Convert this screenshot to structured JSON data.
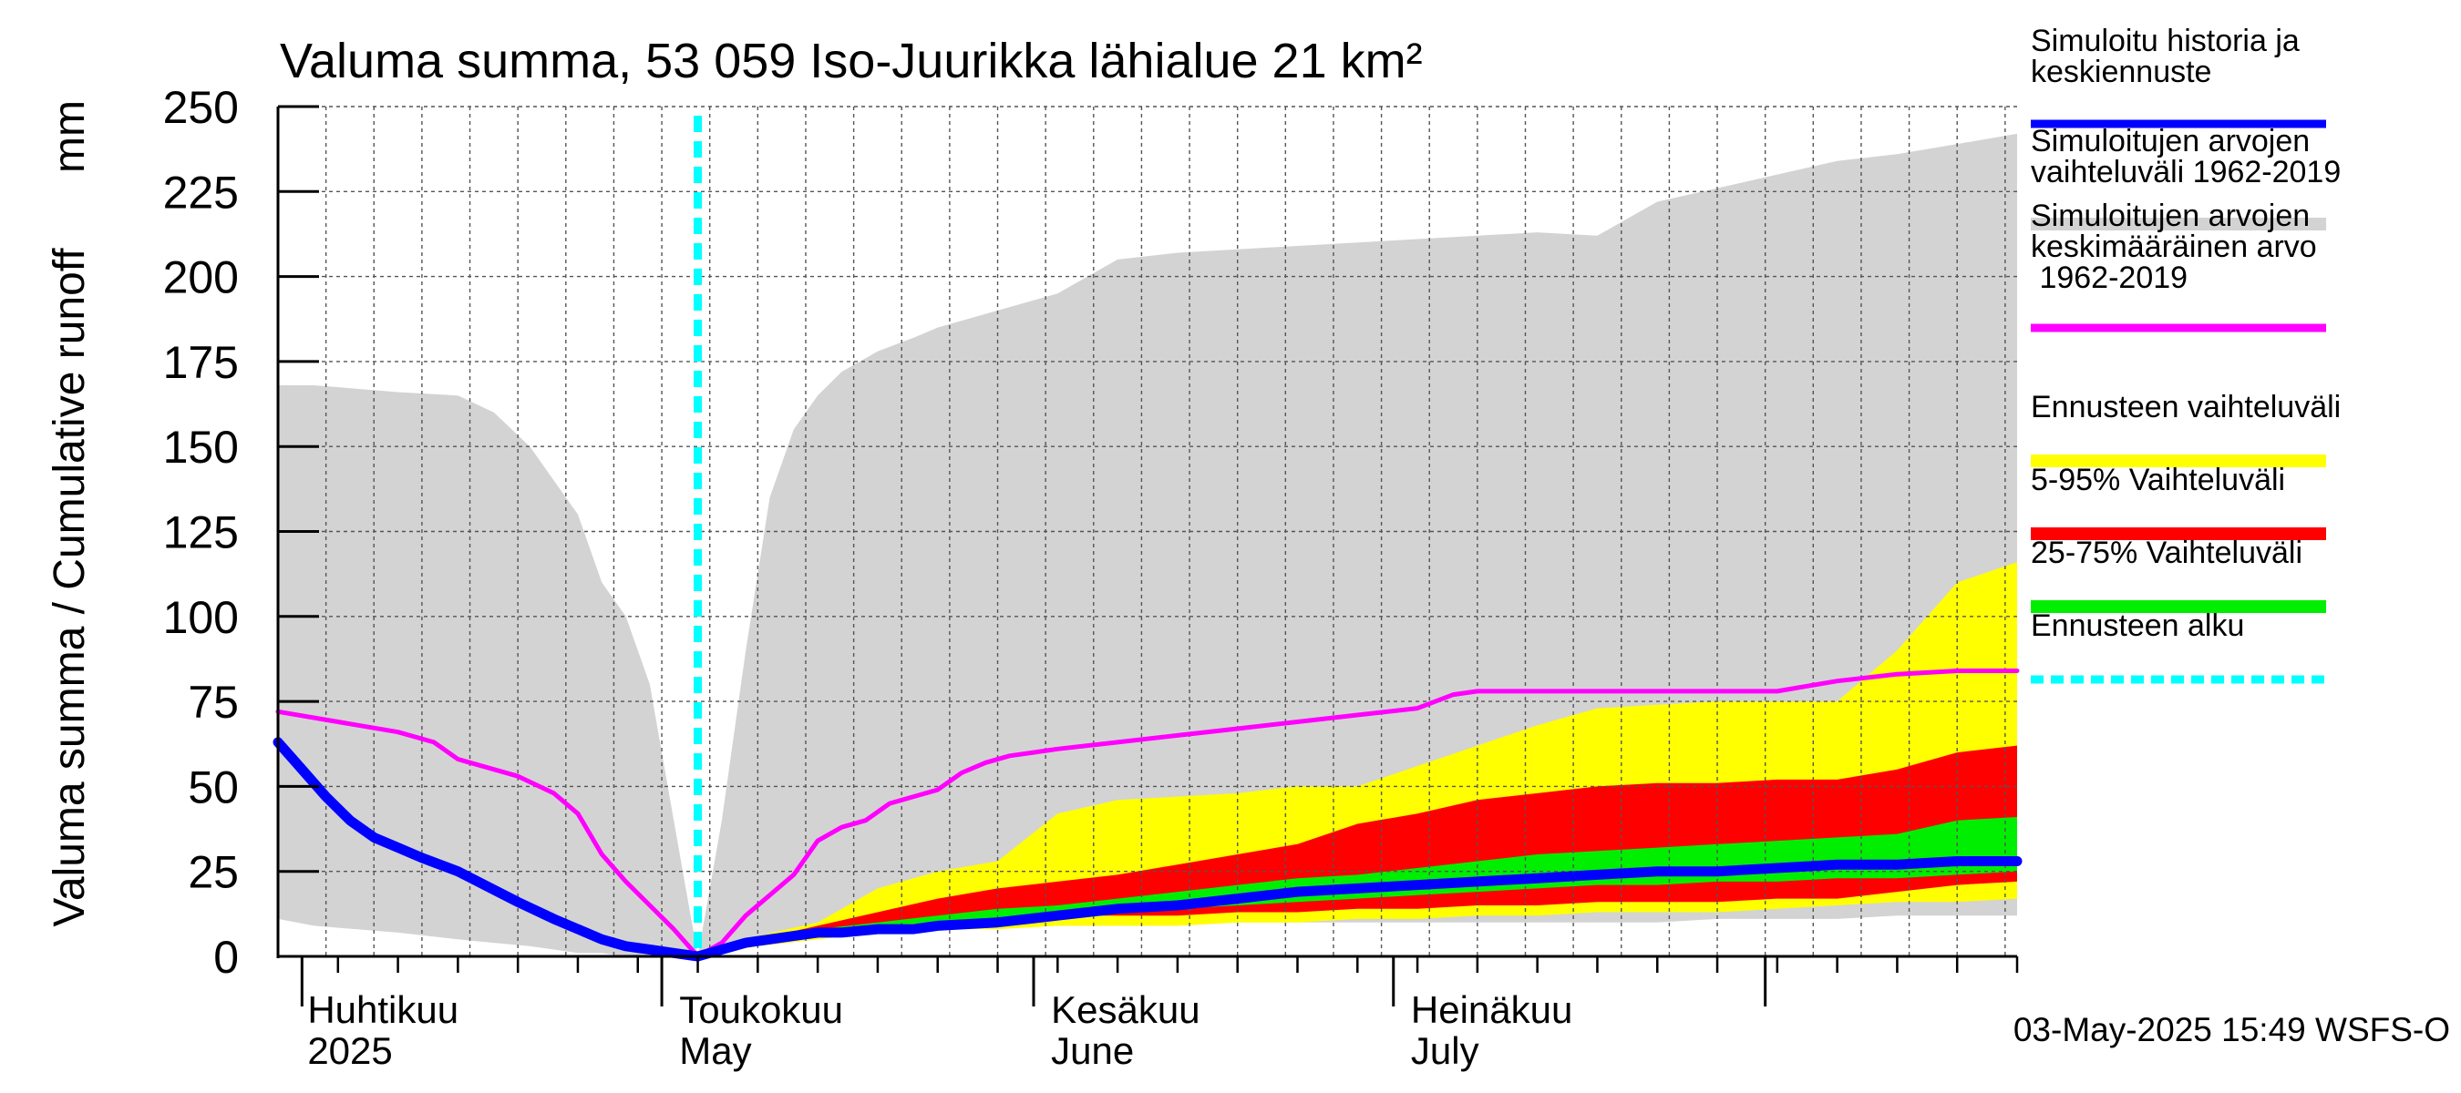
{
  "chart_data": {
    "type": "area",
    "title": "Valuma summa, 53 059 Iso-Juurikka lähialue 21 km²",
    "ylabel": "Valuma summa / Cumulative runoff",
    "yunit": "mm",
    "ylim": [
      0,
      250
    ],
    "yticks": [
      "0",
      "25",
      "50",
      "75",
      "100",
      "125",
      "150",
      "175",
      "200",
      "225",
      "250"
    ],
    "xlim_days": [
      -35,
      110
    ],
    "x_start_date": "2025-03-29",
    "x_end_date": "2025-08-21",
    "month_labels": [
      {
        "fi": "Huhtikuu",
        "en": "2025",
        "day": -33
      },
      {
        "fi": "Toukokuu",
        "en": "May",
        "day": -2
      },
      {
        "fi": "Kesäkuu",
        "en": "June",
        "day": 29
      },
      {
        "fi": "Heinäkuu",
        "en": "July",
        "day": 59
      }
    ],
    "month_boundaries": [
      -33,
      -3,
      28,
      58,
      89
    ],
    "forecast_start_day": 0,
    "grid": true,
    "timestamp": "03-May-2025 15:49 WSFS-O",
    "legend": [
      {
        "label": "Simuloitu historia ja keskiennuste",
        "color": "#0000ff",
        "style": "line"
      },
      {
        "label": "Simuloitujen arvojen vaihteluväli 1962-2019",
        "color": "#d3d3d3",
        "style": "band"
      },
      {
        "label": "Simuloitujen arvojen keskimääräinen arvo 1962-2019",
        "color": "#ff00ff",
        "style": "line"
      },
      {
        "label": "Ennusteen vaihteluväli",
        "color": "#ffff00",
        "style": "band"
      },
      {
        "label": "5-95% Vaihteluväli",
        "color": "#ff0000",
        "style": "band"
      },
      {
        "label": "25-75% Vaihteluväli",
        "color": "#00ee00",
        "style": "band"
      },
      {
        "label": "Ennusteen alku",
        "color": "#00ffff",
        "style": "dashed"
      }
    ],
    "series": [
      {
        "name": "Simuloitujen arvojen vaihteluväli 1962-2019",
        "kind": "band",
        "color": "#d3d3d3",
        "x": [
          -35,
          -32,
          -25,
          -20,
          -17,
          -14,
          -12,
          -10,
          -8,
          -6,
          -4,
          -2,
          0,
          2,
          4,
          6,
          8,
          10,
          12,
          15,
          18,
          20,
          25,
          30,
          35,
          40,
          45,
          50,
          55,
          60,
          65,
          70,
          75,
          80,
          85,
          90,
          95,
          100,
          105,
          110
        ],
        "upper": [
          168,
          168,
          166,
          165,
          160,
          150,
          140,
          130,
          110,
          100,
          80,
          40,
          0,
          40,
          90,
          135,
          155,
          165,
          172,
          178,
          182,
          185,
          190,
          195,
          205,
          207,
          208,
          209,
          210,
          211,
          212,
          213,
          212,
          222,
          226,
          230,
          234,
          236,
          239,
          242
        ],
        "lower": [
          11,
          9,
          7,
          5,
          4,
          3,
          2,
          1,
          1,
          0,
          0,
          0,
          0,
          2,
          4,
          5,
          6,
          6,
          7,
          7,
          8,
          8,
          9,
          9,
          9,
          9,
          10,
          10,
          10,
          10,
          10,
          10,
          10,
          10,
          11,
          11,
          11,
          12,
          12,
          12
        ]
      },
      {
        "name": "Ennusteen vaihteluväli",
        "kind": "band",
        "color": "#ffff00",
        "x": [
          0,
          5,
          10,
          15,
          20,
          25,
          30,
          35,
          40,
          45,
          50,
          55,
          60,
          65,
          70,
          75,
          80,
          85,
          90,
          95,
          100,
          105,
          110
        ],
        "upper": [
          0,
          6,
          10,
          20,
          25,
          28,
          42,
          46,
          47,
          48,
          50,
          50,
          56,
          62,
          68,
          73,
          74,
          75,
          75,
          75,
          90,
          110,
          116
        ],
        "lower": [
          0,
          3,
          5,
          7,
          8,
          8,
          9,
          9,
          9,
          10,
          10,
          11,
          11,
          12,
          12,
          13,
          13,
          13,
          14,
          15,
          16,
          16,
          17
        ]
      },
      {
        "name": "5-95% Vaihteluväli",
        "kind": "band",
        "color": "#ff0000",
        "x": [
          0,
          5,
          10,
          15,
          20,
          25,
          30,
          35,
          40,
          45,
          50,
          55,
          60,
          65,
          70,
          75,
          80,
          85,
          90,
          95,
          100,
          105,
          110
        ],
        "upper": [
          0,
          5,
          9,
          13,
          17,
          20,
          22,
          24,
          27,
          30,
          33,
          39,
          42,
          46,
          48,
          50,
          51,
          51,
          52,
          52,
          55,
          60,
          62
        ],
        "lower": [
          0,
          4,
          7,
          9,
          10,
          11,
          12,
          12,
          12,
          13,
          13,
          14,
          14,
          15,
          15,
          16,
          16,
          16,
          17,
          17,
          19,
          21,
          22
        ]
      },
      {
        "name": "25-75% Vaihteluväli",
        "kind": "band",
        "color": "#00ee00",
        "x": [
          0,
          5,
          10,
          15,
          20,
          25,
          30,
          35,
          40,
          45,
          50,
          55,
          60,
          65,
          70,
          75,
          80,
          85,
          90,
          95,
          100,
          105,
          110
        ],
        "upper": [
          0,
          5,
          8,
          10,
          12,
          14,
          15,
          17,
          19,
          21,
          23,
          24,
          26,
          28,
          30,
          31,
          32,
          33,
          34,
          35,
          36,
          40,
          41
        ],
        "lower": [
          0,
          4,
          7,
          9,
          10,
          11,
          12,
          13,
          14,
          15,
          16,
          17,
          18,
          19,
          20,
          21,
          21,
          22,
          22,
          23,
          23,
          24,
          25
        ]
      },
      {
        "name": "Simuloitujen arvojen keskimääräinen arvo 1962-2019",
        "kind": "line",
        "color": "#ff00ff",
        "x": [
          -35,
          -30,
          -25,
          -22,
          -20,
          -15,
          -12,
          -10,
          -8,
          -6,
          -4,
          -2,
          0,
          2,
          4,
          6,
          8,
          10,
          12,
          14,
          16,
          18,
          20,
          22,
          24,
          26,
          28,
          30,
          35,
          40,
          45,
          50,
          55,
          60,
          63,
          65,
          70,
          75,
          80,
          85,
          90,
          95,
          100,
          105,
          110
        ],
        "y": [
          72,
          69,
          66,
          63,
          58,
          53,
          48,
          42,
          30,
          22,
          15,
          8,
          0,
          4,
          12,
          18,
          24,
          34,
          38,
          40,
          45,
          47,
          49,
          54,
          57,
          59,
          60,
          61,
          63,
          65,
          67,
          69,
          71,
          73,
          77,
          78,
          78,
          78,
          78,
          78,
          78,
          81,
          83,
          84,
          84
        ]
      },
      {
        "name": "Simuloitu historia ja keskiennuste",
        "kind": "line",
        "color": "#0000ff",
        "x": [
          -35,
          -33,
          -31,
          -29,
          -27,
          -25,
          -23,
          -20,
          -15,
          -12,
          -10,
          -8,
          -6,
          -4,
          -2,
          0,
          2,
          4,
          6,
          8,
          10,
          12,
          15,
          18,
          20,
          25,
          30,
          35,
          40,
          45,
          50,
          55,
          60,
          65,
          70,
          75,
          80,
          85,
          90,
          95,
          100,
          105,
          110
        ],
        "y": [
          63,
          55,
          47,
          40,
          35,
          32,
          29,
          25,
          16,
          11,
          8,
          5,
          3,
          2,
          1,
          0,
          2,
          4,
          5,
          6,
          7,
          7,
          8,
          8,
          9,
          10,
          12,
          14,
          15,
          17,
          19,
          20,
          21,
          22,
          23,
          24,
          25,
          25,
          26,
          27,
          27,
          28,
          28
        ]
      }
    ],
    "forecast_start_line": {
      "name": "Ennusteen alku",
      "kind": "vline",
      "color": "#00ffff",
      "x": 0
    }
  }
}
